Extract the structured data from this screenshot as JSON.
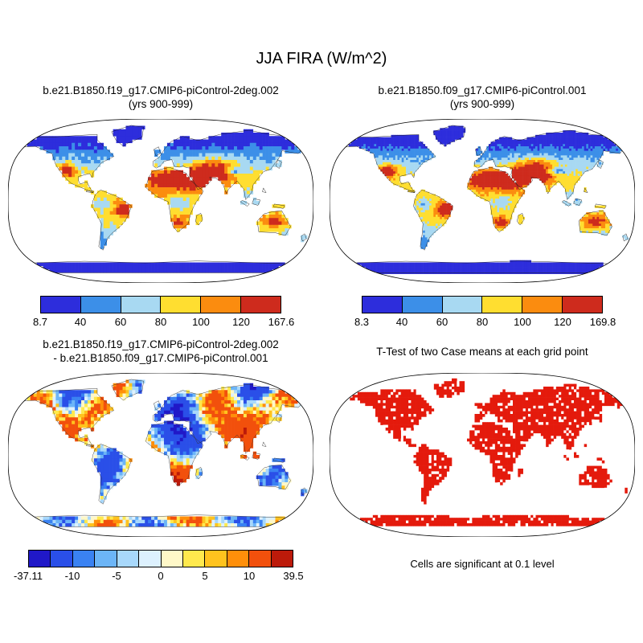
{
  "figure_title": "JJA FIRA (W/m^2)",
  "panels": {
    "top_left": {
      "title1": "b.e21.B1850.f19_g17.CMIP6-piControl-2deg.002",
      "title2": "(yrs 900-999)"
    },
    "top_right": {
      "title1": "b.e21.B1850.f09_g17.CMIP6-piControl.001",
      "title2": "(yrs 900-999)"
    },
    "bottom_left": {
      "title1": "b.e21.B1850.f19_g17.CMIP6-piControl-2deg.002",
      "title2": "- b.e21.B1850.f09_g17.CMIP6-piControl.001"
    },
    "bottom_right": {
      "title1": "T-Test of two Case means at each grid point",
      "caption": "Cells are significant at 0.1 level"
    }
  },
  "chart_data": [
    {
      "type": "heatmap",
      "subtype": "global-map-robinson",
      "panel": "top-left",
      "title": "b.e21.B1850.f19_g17.CMIP6-piControl-2deg.002",
      "subtitle": "(yrs 900-999)",
      "variable": "JJA FIRA (W/m^2)",
      "value_min": 8.7,
      "value_max": 167.6,
      "colorbar_ticks": [
        "8.7",
        "40",
        "60",
        "80",
        "100",
        "120",
        "167.6"
      ],
      "colorbar_colors": [
        "#2D2DDC",
        "#3C8FE8",
        "#A8D9F2",
        "#FFDE30",
        "#FB8C0F",
        "#CE2B1D"
      ]
    },
    {
      "type": "heatmap",
      "subtype": "global-map-robinson",
      "panel": "top-right",
      "title": "b.e21.B1850.f09_g17.CMIP6-piControl.001",
      "subtitle": "(yrs 900-999)",
      "variable": "JJA FIRA (W/m^2)",
      "value_min": 8.3,
      "value_max": 169.8,
      "colorbar_ticks": [
        "8.3",
        "40",
        "60",
        "80",
        "100",
        "120",
        "169.8"
      ],
      "colorbar_colors": [
        "#2D2DDC",
        "#3C8FE8",
        "#A8D9F2",
        "#FFDE30",
        "#FB8C0F",
        "#CE2B1D"
      ]
    },
    {
      "type": "heatmap",
      "subtype": "global-map-robinson",
      "panel": "bottom-left",
      "title": "b.e21.B1850.f19_g17.CMIP6-piControl-2deg.002 - b.e21.B1850.f09_g17.CMIP6-piControl.001",
      "variable": "JJA FIRA (W/m^2)",
      "value_min": -37.11,
      "value_max": 39.5,
      "colorbar_ticks": [
        "-37.11",
        "-10",
        "-5",
        "0",
        "5",
        "10",
        "39.5"
      ],
      "colorbar_colors": [
        "#2018C8",
        "#2A4FE8",
        "#3A82F2",
        "#6CB5F7",
        "#A8D8FB",
        "#DDF1FE",
        "#FFF8C8",
        "#FFE94D",
        "#FFC31E",
        "#FF8F0A",
        "#F2500C",
        "#BC1A0A"
      ]
    },
    {
      "type": "heatmap",
      "subtype": "global-map-robinson",
      "panel": "bottom-right",
      "title": "T-Test of two Case means at each grid point",
      "note": "Cells are significant at 0.1 level",
      "significant_color": "#E41A0C",
      "not_significant_color": "#FFFFFF"
    }
  ]
}
